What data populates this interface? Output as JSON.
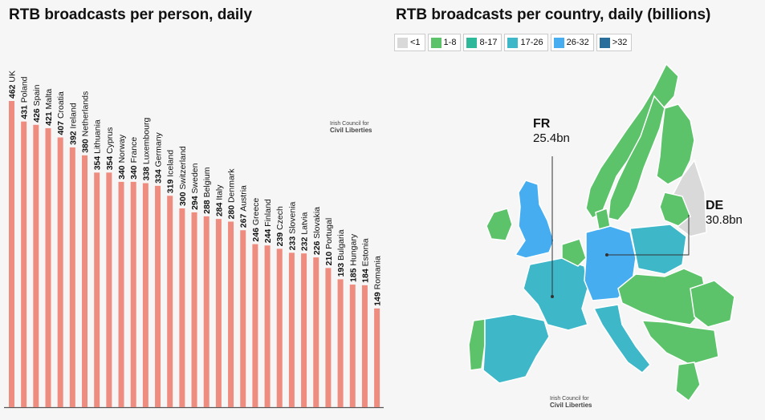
{
  "chart_data": [
    {
      "type": "bar",
      "title": "RTB broadcasts per person, daily",
      "categories": [
        "UK",
        "Poland",
        "Spain",
        "Malta",
        "Croatia",
        "Ireland",
        "Netherlands",
        "Lithuania",
        "Cyprus",
        "Norway",
        "France",
        "Luxembourg",
        "Germany",
        "Iceland",
        "Switzerland",
        "Sweden",
        "Belgium",
        "Italy",
        "Denmark",
        "Austria",
        "Greece",
        "Finland",
        "Czech",
        "Slovenia",
        "Latvia",
        "Slovakia",
        "Portugal",
        "Bulgaria",
        "Hungary",
        "Estonia",
        "Romania"
      ],
      "values": [
        462,
        431,
        426,
        421,
        407,
        392,
        380,
        354,
        354,
        340,
        340,
        338,
        334,
        319,
        300,
        294,
        288,
        284,
        280,
        267,
        246,
        244,
        239,
        233,
        232,
        226,
        210,
        193,
        185,
        184,
        149
      ],
      "ylim": [
        0,
        480
      ],
      "bar_color": "#ef8c80"
    },
    {
      "type": "map",
      "title": "RTB broadcasts per country, daily (billions)",
      "legend": [
        {
          "label": "<1",
          "color": "#d9d9d9"
        },
        {
          "label": "1-8",
          "color": "#5cc36a"
        },
        {
          "label": "8-17",
          "color": "#2fb89a"
        },
        {
          "label": "17-26",
          "color": "#3eb7c9"
        },
        {
          "label": "26-32",
          "color": "#46aef0"
        },
        {
          "label": ">32",
          "color": "#2a6e9c"
        }
      ],
      "callouts": [
        {
          "country": "FR",
          "value": "25.4bn"
        },
        {
          "country": "DE",
          "value": "30.8bn"
        }
      ]
    }
  ],
  "watermark": {
    "line1": "Irish Council for",
    "line2": "Civil Liberties"
  }
}
